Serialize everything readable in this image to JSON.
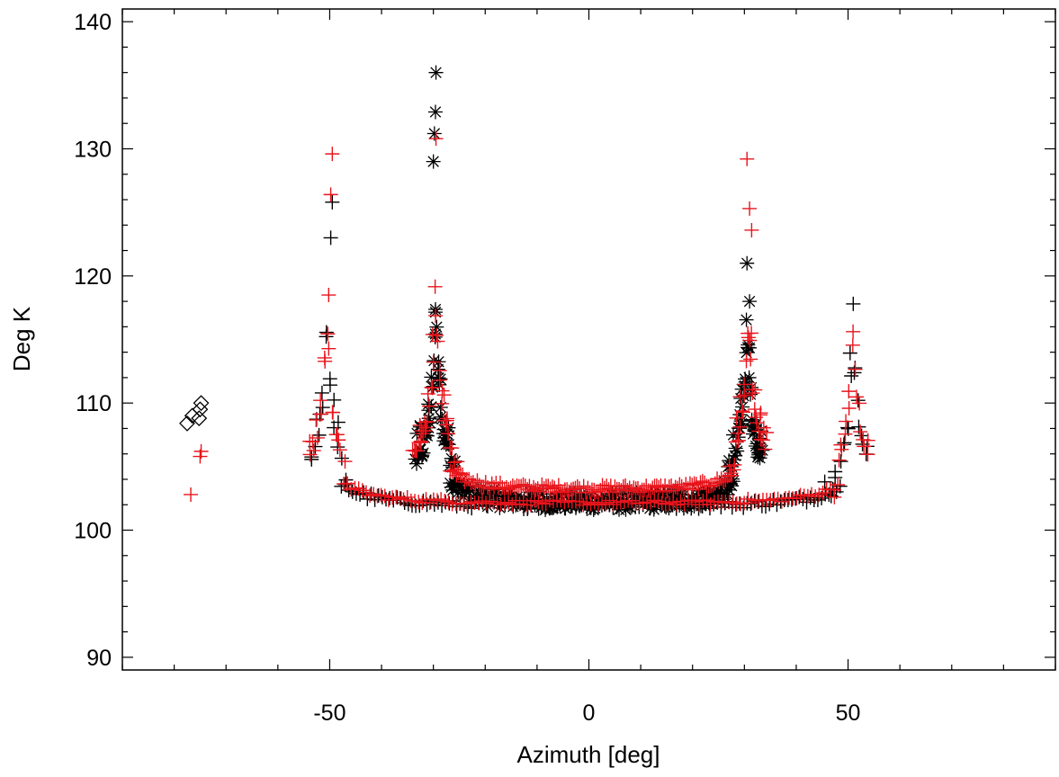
{
  "chart_data": {
    "type": "scatter",
    "title": "",
    "xlabel": "Azimuth [deg]",
    "ylabel": "Deg K",
    "xlim": [
      -90,
      90
    ],
    "ylim": [
      89,
      141
    ],
    "x_ticks": [
      -50,
      0,
      50
    ],
    "y_ticks": [
      90,
      100,
      110,
      120,
      130,
      140
    ],
    "x_minor_step": 10,
    "y_minor_step": 2,
    "grid": false,
    "legend": "none",
    "colors": {
      "black": "#000000",
      "red": "#e8141b"
    },
    "series": [
      {
        "marker": "diamond",
        "color": "black",
        "points": [
          [
            -77.5,
            108.4
          ],
          [
            -76.5,
            109.0
          ],
          [
            -75.2,
            108.8
          ],
          [
            -75.0,
            109.5
          ],
          [
            -74.8,
            110.0
          ]
        ]
      },
      {
        "marker": "plus",
        "color": "red",
        "points": [
          [
            -76.8,
            102.8
          ],
          [
            -75.0,
            105.8
          ],
          [
            -74.8,
            106.2
          ]
        ]
      },
      {
        "marker": "asterisk",
        "color": "black",
        "curve": {
          "x_min": -33.5,
          "x_max": 33.5,
          "x_left_pole": -29.5,
          "x_right_pole": 30.5,
          "base": 102.0,
          "peak_left": 136.0,
          "peak_right": 121.0,
          "count": 260,
          "jitter": 0.7
        },
        "points": [
          [
            -29.5,
            136.0
          ],
          [
            -29.6,
            132.9
          ],
          [
            -29.8,
            131.2
          ],
          [
            -30.0,
            129.0
          ],
          [
            30.5,
            121.0
          ],
          [
            31.0,
            118.0
          ]
        ]
      },
      {
        "marker": "plus",
        "color": "red",
        "curve": {
          "x_min": -34.0,
          "x_max": 34.0,
          "x_left_pole": -29.5,
          "x_right_pole": 30.8,
          "base": 103.0,
          "peak_left": 130.8,
          "peak_right": 129.2,
          "count": 170,
          "jitter": 0.3
        },
        "points": [
          [
            30.5,
            129.2
          ],
          [
            31.0,
            125.3
          ],
          [
            31.4,
            123.6
          ],
          [
            -29.5,
            130.8
          ]
        ]
      },
      {
        "marker": "plus",
        "color": "black",
        "curve": {
          "x_min": -53.5,
          "x_max": 53.5,
          "x_left_pole": -50.5,
          "x_right_pole": 51.0,
          "base": 101.8,
          "peak_left": 116.5,
          "peak_right": 117.8,
          "count": 150,
          "jitter": 0.3
        },
        "points": [
          [
            -49.5,
            125.8
          ],
          [
            -49.8,
            123.0
          ],
          [
            45.5,
            103.8
          ],
          [
            47.5,
            104.6
          ],
          [
            51.0,
            117.8
          ]
        ]
      },
      {
        "marker": "plus",
        "color": "red",
        "curve": {
          "x_min": -53.8,
          "x_max": 53.8,
          "x_left_pole": -50.5,
          "x_right_pole": 51.0,
          "base": 102.0,
          "peak_left": 118.5,
          "peak_right": 116.5,
          "count": 150,
          "jitter": 0.2
        },
        "points": [
          [
            -49.5,
            129.6
          ],
          [
            -49.8,
            126.4
          ],
          [
            -50.2,
            118.5
          ]
        ]
      }
    ]
  }
}
